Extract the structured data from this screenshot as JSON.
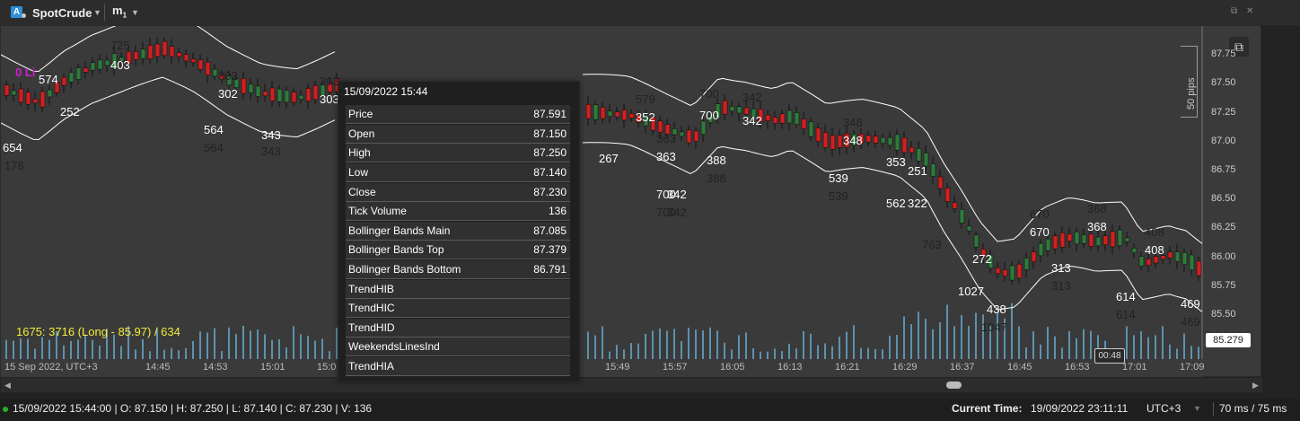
{
  "toolbar": {
    "account_badge": "A",
    "symbol": "SpotCrude",
    "timeframe": "m",
    "timeframe_sub": "1"
  },
  "chart": {
    "limit_label": "0 Li",
    "summary": "1675: 3716 (Long - 85.97) / 634",
    "pips_label": "50 pips",
    "current_price": "85.279",
    "cursor_time": "00:48",
    "price_axis": [
      "87.75",
      "87.50",
      "87.25",
      "87.00",
      "86.75",
      "86.50",
      "86.25",
      "86.00",
      "85.75",
      "85.50"
    ],
    "time_axis": [
      "15 Sep 2022, UTC+3",
      "14:45",
      "14:53",
      "15:01",
      "15:0",
      "15:49",
      "15:57",
      "16:05",
      "16:13",
      "16:21",
      "16:29",
      "16:37",
      "16:45",
      "16:53",
      "17:01",
      "17:09"
    ],
    "volume_labels": [
      {
        "t": "725",
        "c": "#222"
      },
      {
        "t": "403",
        "c": "#fff"
      },
      {
        "t": "574",
        "c": "#fff"
      },
      {
        "t": "252",
        "c": "#fff"
      },
      {
        "t": "654",
        "c": "#fff"
      },
      {
        "t": "178",
        "c": "#222"
      },
      {
        "t": "302",
        "c": "#222"
      },
      {
        "t": "302",
        "c": "#fff"
      },
      {
        "t": "564",
        "c": "#fff"
      },
      {
        "t": "564",
        "c": "#222"
      },
      {
        "t": "343",
        "c": "#fff"
      },
      {
        "t": "343",
        "c": "#222"
      },
      {
        "t": "303",
        "c": "#222"
      },
      {
        "t": "303",
        "c": "#fff"
      },
      {
        "t": "579",
        "c": "#222"
      },
      {
        "t": "352",
        "c": "#fff"
      },
      {
        "t": "267",
        "c": "#fff"
      },
      {
        "t": "363",
        "c": "#fff"
      },
      {
        "t": "363",
        "c": "#222"
      },
      {
        "t": "700",
        "c": "#222"
      },
      {
        "t": "700",
        "c": "#fff"
      },
      {
        "t": "342",
        "c": "#222"
      },
      {
        "t": "342",
        "c": "#fff"
      },
      {
        "t": "388",
        "c": "#fff"
      },
      {
        "t": "388",
        "c": "#222"
      },
      {
        "t": "700",
        "c": "#fff"
      },
      {
        "t": "342",
        "c": "#fff"
      },
      {
        "t": "700",
        "c": "#222"
      },
      {
        "t": "342",
        "c": "#222"
      },
      {
        "t": "348",
        "c": "#222"
      },
      {
        "t": "348",
        "c": "#fff"
      },
      {
        "t": "539",
        "c": "#fff"
      },
      {
        "t": "539",
        "c": "#222"
      },
      {
        "t": "353",
        "c": "#fff"
      },
      {
        "t": "251",
        "c": "#fff"
      },
      {
        "t": "562",
        "c": "#fff"
      },
      {
        "t": "322",
        "c": "#fff"
      },
      {
        "t": "763",
        "c": "#222"
      },
      {
        "t": "272",
        "c": "#fff"
      },
      {
        "t": "1027",
        "c": "#fff"
      },
      {
        "t": "438",
        "c": "#fff"
      },
      {
        "t": "1047",
        "c": "#222"
      },
      {
        "t": "670",
        "c": "#222"
      },
      {
        "t": "670",
        "c": "#fff"
      },
      {
        "t": "313",
        "c": "#fff"
      },
      {
        "t": "313",
        "c": "#222"
      },
      {
        "t": "368",
        "c": "#222"
      },
      {
        "t": "368",
        "c": "#fff"
      },
      {
        "t": "408",
        "c": "#222"
      },
      {
        "t": "408",
        "c": "#fff"
      },
      {
        "t": "614",
        "c": "#fff"
      },
      {
        "t": "614",
        "c": "#222"
      },
      {
        "t": "469",
        "c": "#fff"
      },
      {
        "t": "469",
        "c": "#222"
      }
    ]
  },
  "tooltip": {
    "title": "15/09/2022 15:44",
    "rows": [
      {
        "label": "Price",
        "value": "87.591"
      },
      {
        "label": "Open",
        "value": "87.150"
      },
      {
        "label": "High",
        "value": "87.250"
      },
      {
        "label": "Low",
        "value": "87.140"
      },
      {
        "label": "Close",
        "value": "87.230"
      },
      {
        "label": "Tick Volume",
        "value": "136"
      },
      {
        "label": "Bollinger Bands Main",
        "value": "87.085"
      },
      {
        "label": "Bollinger Bands Top",
        "value": "87.379"
      },
      {
        "label": "Bollinger Bands Bottom",
        "value": "86.791"
      },
      {
        "label": "TrendHIB",
        "value": ""
      },
      {
        "label": "TrendHIC",
        "value": ""
      },
      {
        "label": "TrendHID",
        "value": ""
      },
      {
        "label": "WeekendsLinesInd",
        "value": ""
      },
      {
        "label": "TrendHIA",
        "value": ""
      }
    ]
  },
  "status": {
    "ohlc": "15/09/2022 15:44:00 | O: 87.150 | H: 87.250 | L: 87.140 | C: 87.230 | V: 136",
    "current_time_label": "Current Time:",
    "current_time_value": "19/09/2022 23:11:11",
    "timezone": "UTC+3",
    "latency": "70 ms / 75 ms"
  },
  "colors": {
    "bull": "#2e7a3a",
    "bear": "#d21f1f",
    "volume": "#6aaed6",
    "bands": "#ffffff",
    "limit": "#d21cd2",
    "summary": "#f4ec3a"
  }
}
